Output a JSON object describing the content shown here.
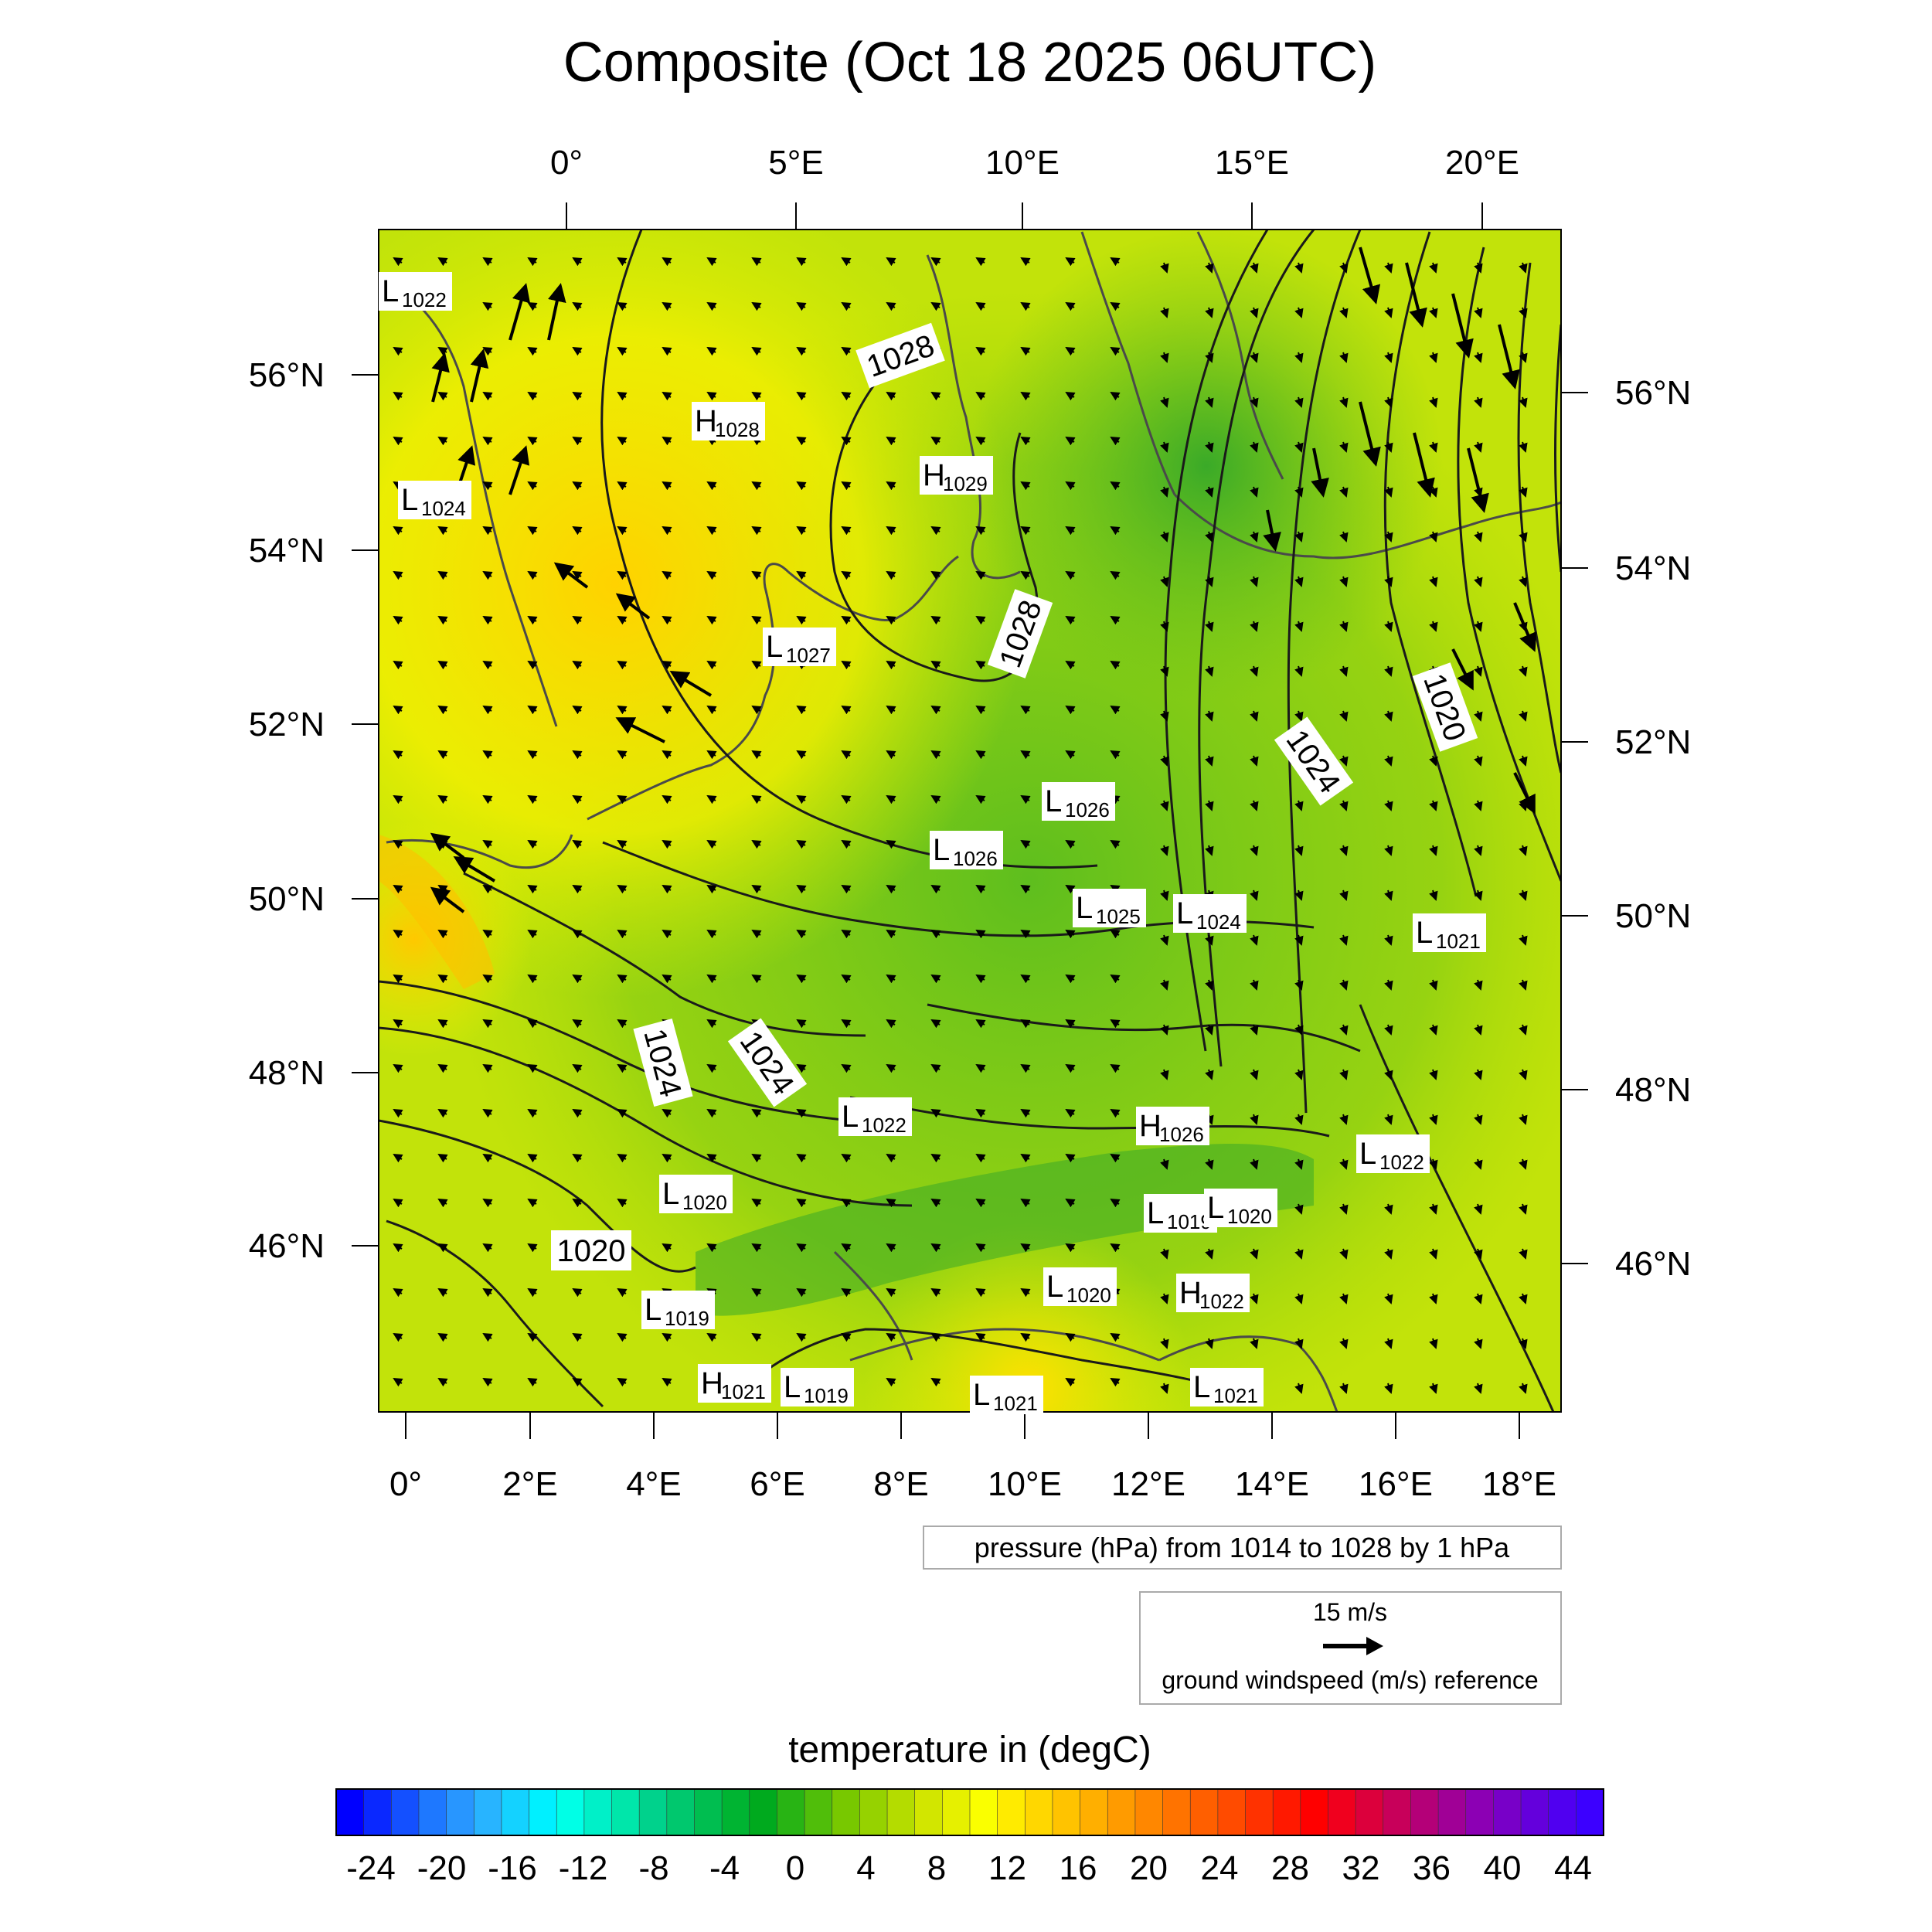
{
  "title": "Composite (Oct 18 2025 06UTC)",
  "map": {
    "top_lon_ticks": [
      "0°",
      "5°E",
      "10°E",
      "15°E",
      "20°E"
    ],
    "left_lat_ticks": [
      "56°N",
      "54°N",
      "52°N",
      "50°N",
      "48°N",
      "46°N"
    ],
    "right_lat_ticks": [
      "56°N",
      "54°N",
      "52°N",
      "50°N",
      "48°N",
      "46°N"
    ],
    "bottom_lon_ticks": [
      "0°",
      "2°E",
      "4°E",
      "6°E",
      "8°E",
      "10°E",
      "12°E",
      "14°E",
      "16°E",
      "18°E"
    ],
    "pressure_centers": [
      {
        "type": "L",
        "value": "1022"
      },
      {
        "type": "L",
        "value": "1024"
      },
      {
        "type": "H",
        "value": "1028"
      },
      {
        "type": "H",
        "value": "1029"
      },
      {
        "type": "L",
        "value": "1027"
      },
      {
        "type": "L",
        "value": "1026"
      },
      {
        "type": "L",
        "value": "1026"
      },
      {
        "type": "L",
        "value": "1025"
      },
      {
        "type": "L",
        "value": "1024"
      },
      {
        "type": "L",
        "value": "1021"
      },
      {
        "type": "L",
        "value": "1022"
      },
      {
        "type": "H",
        "value": "1026"
      },
      {
        "type": "L",
        "value": "1022"
      },
      {
        "type": "L",
        "value": "1020"
      },
      {
        "type": "L",
        "value": "1019"
      },
      {
        "type": "L",
        "value": "1020"
      },
      {
        "type": "L",
        "value": "1019"
      },
      {
        "type": "L",
        "value": "1020"
      },
      {
        "type": "H",
        "value": "1022"
      },
      {
        "type": "H",
        "value": "1021"
      },
      {
        "type": "L",
        "value": "1019"
      },
      {
        "type": "L",
        "value": "1021"
      },
      {
        "type": "L",
        "value": "1021"
      }
    ],
    "isobar_labels": [
      "1028",
      "1028",
      "1020",
      "1024",
      "1024",
      "1024",
      "1020"
    ]
  },
  "pressure_legend": "pressure (hPa) from 1014 to 1028 by 1 hPa",
  "wind_reference": {
    "speed_label": "15 m/s",
    "caption": "ground windspeed (m/s) reference"
  },
  "colorbar": {
    "title": "temperature in (degC)",
    "tick_labels": [
      "-24",
      "-20",
      "-16",
      "-12",
      "-8",
      "-4",
      "0",
      "4",
      "8",
      "12",
      "16",
      "20",
      "24",
      "28",
      "32",
      "36",
      "40",
      "44"
    ],
    "colors": [
      "#0000ff",
      "#0a28ff",
      "#1450ff",
      "#1e78ff",
      "#2896ff",
      "#28b4ff",
      "#14d2ff",
      "#00f0ff",
      "#00ffe6",
      "#00f0c8",
      "#00e6aa",
      "#00d28c",
      "#00c86e",
      "#00be50",
      "#00b432",
      "#00aa1e",
      "#28b414",
      "#50be0a",
      "#78c800",
      "#96d200",
      "#b4dc00",
      "#d2e600",
      "#e6f000",
      "#faff00",
      "#ffeb00",
      "#ffd700",
      "#ffc300",
      "#ffaf00",
      "#ff9b00",
      "#ff8700",
      "#ff7300",
      "#ff5f00",
      "#ff4b00",
      "#ff3200",
      "#ff1900",
      "#ff0000",
      "#f0001e",
      "#dc003c",
      "#c8005a",
      "#b40078",
      "#a00096",
      "#8c00b4",
      "#7800c8",
      "#6400dc",
      "#5000f0",
      "#3c00ff"
    ]
  }
}
